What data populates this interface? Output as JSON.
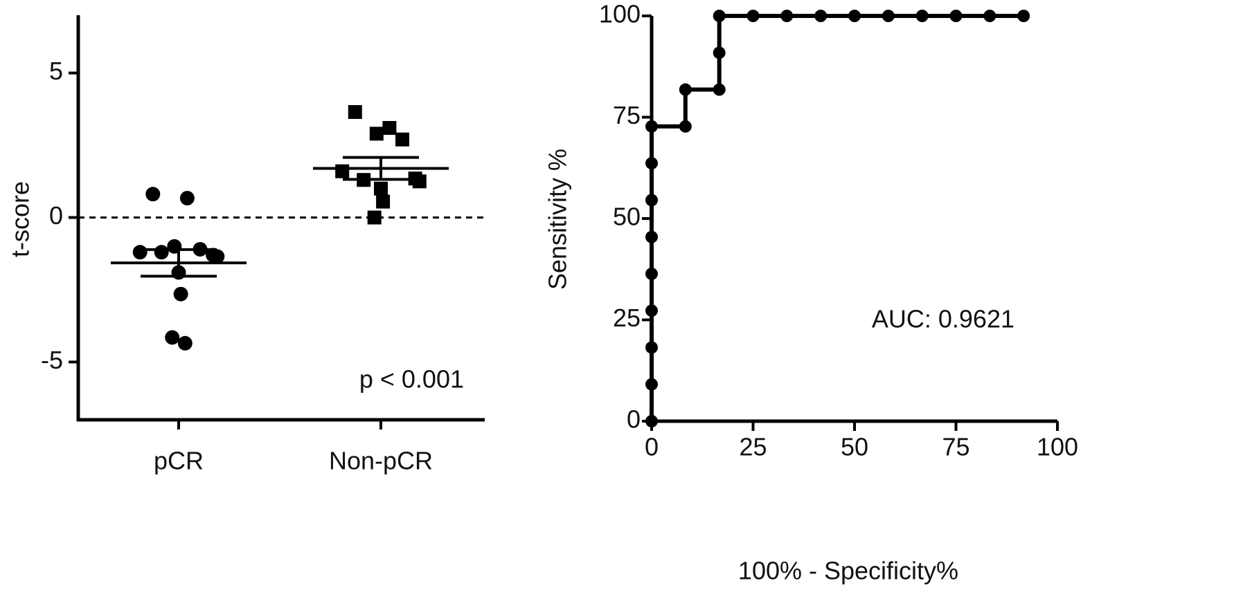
{
  "chart_data": [
    {
      "type": "dot",
      "ylabel": "t-score",
      "annotation": "p < 0.001",
      "categories": [
        "pCR",
        "Non-pCR"
      ],
      "groups": [
        {
          "marker": "circle",
          "values": [
            0.81,
            0.67,
            -1.0,
            -1.1,
            -1.2,
            -1.3,
            -1.2,
            -1.35,
            -1.9,
            -2.65,
            -4.15,
            -4.35
          ],
          "mean": -1.57,
          "sem": 0.46
        },
        {
          "marker": "square",
          "values": [
            3.65,
            3.1,
            2.9,
            2.7,
            1.6,
            1.35,
            1.3,
            1.25,
            1.0,
            0.55,
            0.0
          ],
          "mean": 1.7,
          "sem": 0.38
        }
      ],
      "color": "#000000",
      "reference_line": 0,
      "ylim": [
        -7,
        7
      ],
      "yticks": [
        -5,
        0,
        5
      ]
    },
    {
      "type": "line",
      "xlabel": "100% - Specificity%",
      "ylabel": "Sensitivity %",
      "annotation": "AUC: 0.9621",
      "x": [
        0,
        0,
        0,
        0,
        0,
        0,
        0,
        0,
        0,
        8.33,
        8.33,
        16.67,
        16.67,
        16.67,
        25,
        33.33,
        41.67,
        50,
        58.33,
        66.67,
        75,
        83.33,
        91.67
      ],
      "series": [
        {
          "color": "#000000",
          "values": [
            0,
            9.09,
            18.18,
            27.27,
            36.36,
            45.45,
            54.55,
            63.64,
            72.73,
            72.73,
            81.82,
            81.82,
            90.91,
            100,
            100,
            100,
            100,
            100,
            100,
            100,
            100,
            100,
            100
          ]
        }
      ],
      "xlim": [
        0,
        100
      ],
      "xticks": [
        0,
        25,
        50,
        75,
        100
      ],
      "ylim": [
        0,
        100
      ],
      "yticks": [
        0,
        25,
        50,
        75,
        100
      ]
    }
  ]
}
